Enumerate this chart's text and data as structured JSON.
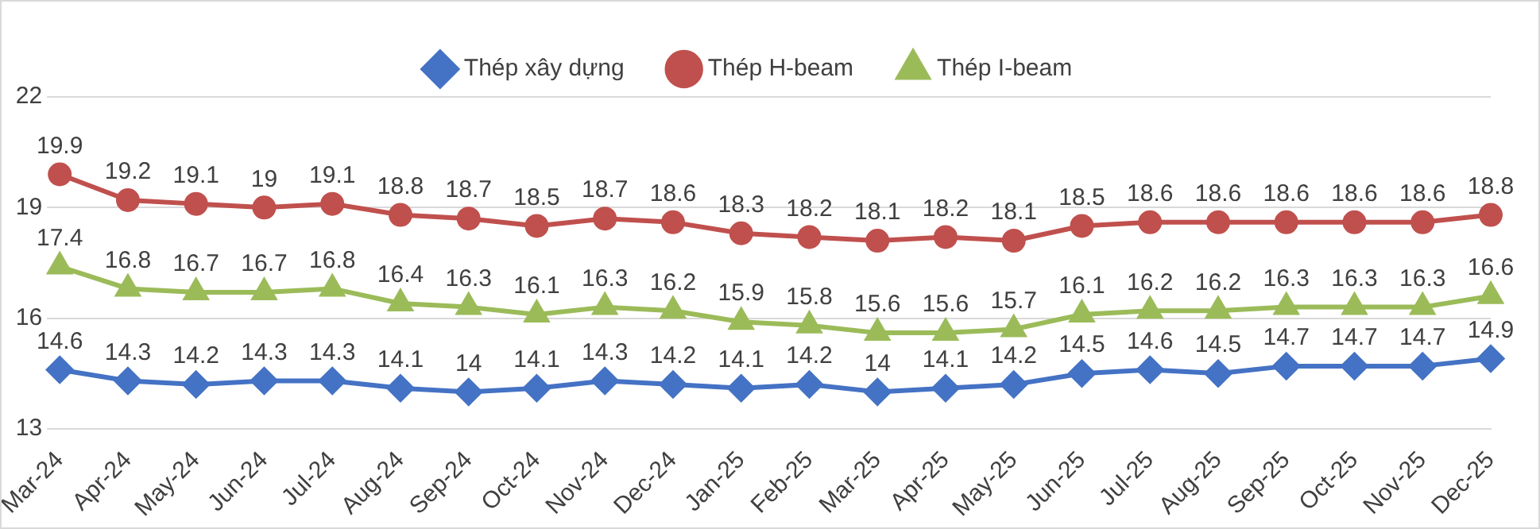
{
  "chart_data": {
    "type": "line",
    "categories": [
      "Mar-24",
      "Apr-24",
      "May-24",
      "Jun-24",
      "Jul-24",
      "Aug-24",
      "Sep-24",
      "Oct-24",
      "Nov-24",
      "Dec-24",
      "Jan-25",
      "Feb-25",
      "Mar-25",
      "Apr-25",
      "May-25",
      "Jun-25",
      "Jul-25",
      "Aug-25",
      "Sep-25",
      "Oct-25",
      "Nov-25",
      "Dec-25"
    ],
    "series": [
      {
        "name": "Thép xây dựng",
        "color": "#4472c4",
        "marker": "diamond",
        "values": [
          14.6,
          14.3,
          14.2,
          14.3,
          14.3,
          14.1,
          14,
          14.1,
          14.3,
          14.2,
          14.1,
          14.2,
          14,
          14.1,
          14.2,
          14.5,
          14.6,
          14.5,
          14.7,
          14.7,
          14.7,
          14.9
        ]
      },
      {
        "name": "Thép H-beam",
        "color": "#c0504d",
        "marker": "circle",
        "values": [
          19.9,
          19.2,
          19.1,
          19,
          19.1,
          18.8,
          18.7,
          18.5,
          18.7,
          18.6,
          18.3,
          18.2,
          18.1,
          18.2,
          18.1,
          18.5,
          18.6,
          18.6,
          18.6,
          18.6,
          18.6,
          18.8
        ]
      },
      {
        "name": "Thép I-beam",
        "color": "#9bbb59",
        "marker": "triangle",
        "values": [
          17.4,
          16.8,
          16.7,
          16.7,
          16.8,
          16.4,
          16.3,
          16.1,
          16.3,
          16.2,
          15.9,
          15.8,
          15.6,
          15.6,
          15.7,
          16.1,
          16.2,
          16.2,
          16.3,
          16.3,
          16.3,
          16.6
        ]
      }
    ],
    "ylim": [
      13,
      22
    ],
    "yticks": [
      13,
      16,
      19,
      22
    ],
    "grid": "y",
    "legend": "top",
    "data_labels": true
  }
}
